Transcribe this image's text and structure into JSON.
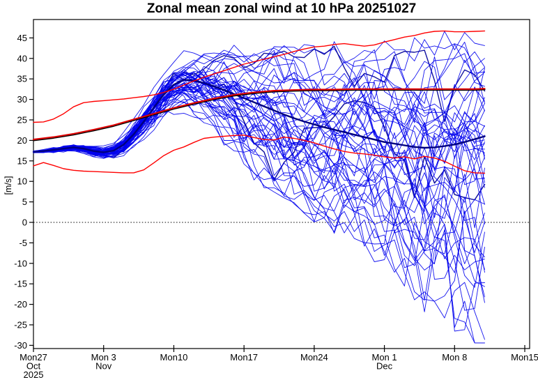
{
  "chart_data": {
    "type": "line",
    "chart_kind": "ensemble-spaghetti-forecast",
    "title": "Zonal mean zonal wind at 10 hPa 20251027",
    "ylabel": "[m/s]",
    "init_date_label": "20251027",
    "zero_line": true,
    "legend_position": "none",
    "grid": false,
    "y_axis": {
      "ticks": [
        45,
        40,
        35,
        30,
        25,
        20,
        15,
        10,
        5,
        0,
        -5,
        -10,
        -15,
        -20,
        -25,
        -30
      ],
      "range_shown": [
        -32,
        49.5
      ]
    },
    "x_axis": {
      "total_days": 49,
      "data_days": 45,
      "ticks": [
        {
          "day": 0,
          "labels": [
            "Mon27",
            "Oct",
            "2025"
          ]
        },
        {
          "day": 7,
          "labels": [
            "Mon 3",
            "Nov"
          ]
        },
        {
          "day": 14,
          "labels": [
            "Mon10"
          ]
        },
        {
          "day": 21,
          "labels": [
            "Mon17"
          ]
        },
        {
          "day": 28,
          "labels": [
            "Mon24"
          ]
        },
        {
          "day": 35,
          "labels": [
            "Mon 1",
            "Dec"
          ]
        },
        {
          "day": 42,
          "labels": [
            "Mon 8"
          ]
        },
        {
          "day": 49,
          "labels": [
            "Mon15"
          ]
        }
      ]
    },
    "series": {
      "upper_red_percentile": {
        "color": "#ff0000",
        "width": 1.4,
        "points": [
          [
            0,
            24.4
          ],
          [
            1,
            24.5
          ],
          [
            2,
            25.2
          ],
          [
            3,
            26.5
          ],
          [
            4,
            28.2
          ],
          [
            5,
            29.2
          ],
          [
            6,
            29.5
          ],
          [
            7,
            29.7
          ],
          [
            8,
            29.9
          ],
          [
            9,
            30.1
          ],
          [
            10,
            30.4
          ],
          [
            11,
            30.7
          ],
          [
            12,
            31.1
          ],
          [
            13,
            31.7
          ],
          [
            14,
            32.5
          ],
          [
            15,
            33.5
          ],
          [
            16,
            34.5
          ],
          [
            17,
            35.4
          ],
          [
            18,
            36.2
          ],
          [
            19,
            37.0
          ],
          [
            20,
            37.8
          ],
          [
            21,
            38.6
          ],
          [
            22,
            39.2
          ],
          [
            23,
            39.8
          ],
          [
            24,
            40.4
          ],
          [
            25,
            41.0
          ],
          [
            26,
            41.7
          ],
          [
            27,
            42.3
          ],
          [
            28,
            42.8
          ],
          [
            29,
            43.0
          ],
          [
            30,
            43.4
          ],
          [
            31,
            43.6
          ],
          [
            32,
            43.3
          ],
          [
            33,
            43.0
          ],
          [
            34,
            43.3
          ],
          [
            35,
            44.0
          ],
          [
            36,
            44.6
          ],
          [
            37,
            45.2
          ],
          [
            38,
            45.6
          ],
          [
            39,
            46.2
          ],
          [
            40,
            46.6
          ],
          [
            41,
            46.7
          ],
          [
            42,
            46.5
          ],
          [
            43,
            46.5
          ],
          [
            44,
            46.6
          ],
          [
            45,
            46.7
          ]
        ]
      },
      "lower_red_percentile": {
        "color": "#ff0000",
        "width": 1.4,
        "points": [
          [
            0,
            13.8
          ],
          [
            1,
            14.6
          ],
          [
            2,
            13.9
          ],
          [
            3,
            13.1
          ],
          [
            4,
            12.7
          ],
          [
            5,
            12.5
          ],
          [
            6,
            12.4
          ],
          [
            7,
            12.3
          ],
          [
            8,
            12.2
          ],
          [
            9,
            12.1
          ],
          [
            10,
            12.1
          ],
          [
            11,
            12.8
          ],
          [
            12,
            14.5
          ],
          [
            13,
            16.3
          ],
          [
            14,
            17.6
          ],
          [
            15,
            18.4
          ],
          [
            16,
            19.5
          ],
          [
            17,
            20.5
          ],
          [
            18,
            20.8
          ],
          [
            19,
            21.0
          ],
          [
            20,
            21.2
          ],
          [
            21,
            21.3
          ],
          [
            22,
            20.7
          ],
          [
            23,
            20.2
          ],
          [
            24,
            20.1
          ],
          [
            25,
            20.8
          ],
          [
            26,
            20.5
          ],
          [
            27,
            20.0
          ],
          [
            28,
            19.4
          ],
          [
            29,
            18.6
          ],
          [
            30,
            17.9
          ],
          [
            31,
            17.3
          ],
          [
            32,
            16.9
          ],
          [
            33,
            16.7
          ],
          [
            34,
            16.4
          ],
          [
            35,
            16.0
          ],
          [
            36,
            15.7
          ],
          [
            37,
            16.0
          ],
          [
            38,
            15.5
          ],
          [
            39,
            16.1
          ],
          [
            40,
            15.7
          ],
          [
            41,
            14.9
          ],
          [
            42,
            13.7
          ],
          [
            43,
            12.6
          ],
          [
            44,
            12.1
          ],
          [
            45,
            12.0
          ]
        ]
      },
      "climatology_mean": {
        "color": "#e00000",
        "underlay_color": "#000000",
        "width": 2.1,
        "points": [
          [
            0,
            20.0
          ],
          [
            2,
            20.6
          ],
          [
            4,
            21.4
          ],
          [
            6,
            22.4
          ],
          [
            8,
            23.5
          ],
          [
            10,
            24.9
          ],
          [
            12,
            26.3
          ],
          [
            14,
            27.7
          ],
          [
            16,
            28.9
          ],
          [
            18,
            30.0
          ],
          [
            20,
            30.9
          ],
          [
            22,
            31.5
          ],
          [
            24,
            31.9
          ],
          [
            26,
            32.1
          ],
          [
            28,
            32.2
          ],
          [
            30,
            32.2
          ],
          [
            32,
            32.3
          ],
          [
            34,
            32.3
          ],
          [
            36,
            32.3
          ],
          [
            38,
            32.3
          ],
          [
            40,
            32.3
          ],
          [
            42,
            32.3
          ],
          [
            44,
            32.3
          ],
          [
            45,
            32.4
          ]
        ]
      },
      "ensemble_mean": {
        "color": "#000080",
        "width": 2.4,
        "points": [
          [
            0,
            17.2
          ],
          [
            1,
            17.4
          ],
          [
            2,
            17.7
          ],
          [
            3,
            18.0
          ],
          [
            4,
            18.3
          ],
          [
            5,
            18.0
          ],
          [
            6,
            17.4
          ],
          [
            7,
            17.1
          ],
          [
            8,
            17.5
          ],
          [
            9,
            19.0
          ],
          [
            10,
            21.5
          ],
          [
            11,
            24.6
          ],
          [
            12,
            28.0
          ],
          [
            13,
            31.2
          ],
          [
            14,
            33.6
          ],
          [
            15,
            34.8
          ],
          [
            16,
            34.6
          ],
          [
            17,
            34.0
          ],
          [
            18,
            33.2
          ],
          [
            19,
            32.3
          ],
          [
            20,
            31.3
          ],
          [
            21,
            30.3
          ],
          [
            22,
            29.3
          ],
          [
            23,
            28.3
          ],
          [
            24,
            27.3
          ],
          [
            25,
            26.3
          ],
          [
            26,
            25.4
          ],
          [
            27,
            24.6
          ],
          [
            28,
            23.9
          ],
          [
            29,
            23.2
          ],
          [
            30,
            22.6
          ],
          [
            31,
            22.0
          ],
          [
            32,
            21.4
          ],
          [
            33,
            20.8
          ],
          [
            34,
            20.2
          ],
          [
            35,
            19.6
          ],
          [
            36,
            19.2
          ],
          [
            37,
            18.8
          ],
          [
            38,
            18.4
          ],
          [
            39,
            18.2
          ],
          [
            40,
            18.3
          ],
          [
            41,
            18.6
          ],
          [
            42,
            19.0
          ],
          [
            43,
            19.6
          ],
          [
            44,
            20.3
          ],
          [
            45,
            21.0
          ]
        ]
      },
      "ensemble_members": {
        "color": "#0000ee",
        "width": 0.9,
        "opacity": 0.92,
        "count": 50,
        "seed": 20251027,
        "note": "individual member traces approximated from visible envelope",
        "walk": {
          "persistence": 0.88,
          "step": 0.42
        },
        "bias_ramp_days": [
          8,
          25
        ],
        "z_clamp": 2.35,
        "value_clamp": [
          -29.4,
          46.8
        ],
        "spread_up": [
          [
            0,
            0.25
          ],
          [
            4,
            0.6
          ],
          [
            6,
            0.8
          ],
          [
            8,
            1.1
          ],
          [
            10,
            1.6
          ],
          [
            12,
            2.0
          ],
          [
            14,
            2.2
          ],
          [
            16,
            2.5
          ],
          [
            18,
            3.2
          ],
          [
            20,
            4.6
          ],
          [
            23,
            5.8
          ],
          [
            25,
            6.8
          ],
          [
            28,
            7.8
          ],
          [
            30,
            8.4
          ],
          [
            33,
            9.0
          ],
          [
            35,
            9.4
          ],
          [
            38,
            9.9
          ],
          [
            40,
            10.2
          ],
          [
            43,
            10.4
          ],
          [
            45,
            10.5
          ]
        ],
        "spread_down": [
          [
            0,
            0.25
          ],
          [
            4,
            0.6
          ],
          [
            6,
            0.8
          ],
          [
            8,
            1.1
          ],
          [
            10,
            1.6
          ],
          [
            12,
            2.4
          ],
          [
            14,
            3.0
          ],
          [
            16,
            3.6
          ],
          [
            18,
            4.6
          ],
          [
            20,
            6.4
          ],
          [
            23,
            7.6
          ],
          [
            25,
            8.3
          ],
          [
            28,
            9.2
          ],
          [
            30,
            9.8
          ],
          [
            33,
            11.2
          ],
          [
            35,
            12.6
          ],
          [
            38,
            15.2
          ],
          [
            40,
            17.0
          ],
          [
            43,
            19.8
          ],
          [
            45,
            21.0
          ]
        ],
        "jag": [
          [
            0,
            0.15
          ],
          [
            8,
            0.3
          ],
          [
            12,
            0.8
          ],
          [
            16,
            1.2
          ],
          [
            20,
            1.6
          ],
          [
            25,
            2.1
          ],
          [
            30,
            2.6
          ],
          [
            35,
            3.0
          ],
          [
            40,
            3.3
          ],
          [
            45,
            3.4
          ]
        ],
        "special": [
          {
            "index": 0,
            "bias": -2.2
          },
          {
            "index": 1,
            "bias": 2.05
          },
          {
            "index": 2,
            "bias": -1.25,
            "color": "#000099",
            "width": 1.5
          },
          {
            "index": 3,
            "bias": 1.35,
            "color": "#000099",
            "width": 1.4
          }
        ]
      }
    }
  }
}
